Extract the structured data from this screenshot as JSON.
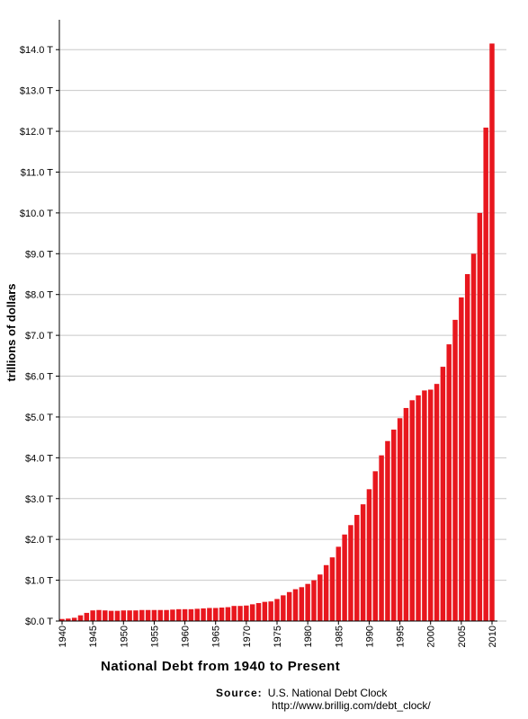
{
  "chart_data": {
    "type": "bar",
    "title": "National Debt from 1940 to Present",
    "ylabel": "trillions of dollars",
    "xlabel": "",
    "ylim": [
      0,
      14.6
    ],
    "y_ticks": [
      "$0.0 T",
      "$1.0 T",
      "$2.0 T",
      "$3.0 T",
      "$4.0 T",
      "$5.0 T",
      "$6.0 T",
      "$7.0 T",
      "$8.0 T",
      "$9.0 T",
      "$10.0 T",
      "$11.0 T",
      "$12.0 T",
      "$13.0 T",
      "$14.0 T"
    ],
    "x_ticks": [
      "1940",
      "1945",
      "1950",
      "1955",
      "1960",
      "1965",
      "1970",
      "1975",
      "1980",
      "1985",
      "1990",
      "1995",
      "2000",
      "2005",
      "2010"
    ],
    "grid": true,
    "bar_color": "#e8171e",
    "categories": [
      "1940",
      "1941",
      "1942",
      "1943",
      "1944",
      "1945",
      "1946",
      "1947",
      "1948",
      "1949",
      "1950",
      "1951",
      "1952",
      "1953",
      "1954",
      "1955",
      "1956",
      "1957",
      "1958",
      "1959",
      "1960",
      "1961",
      "1962",
      "1963",
      "1964",
      "1965",
      "1966",
      "1967",
      "1968",
      "1969",
      "1970",
      "1971",
      "1972",
      "1973",
      "1974",
      "1975",
      "1976",
      "1977",
      "1978",
      "1979",
      "1980",
      "1981",
      "1982",
      "1983",
      "1984",
      "1985",
      "1986",
      "1987",
      "1988",
      "1989",
      "1990",
      "1991",
      "1992",
      "1993",
      "1994",
      "1995",
      "1996",
      "1997",
      "1998",
      "1999",
      "2000",
      "2001",
      "2002",
      "2003",
      "2004",
      "2005",
      "2006",
      "2007",
      "2008",
      "2009",
      "2010"
    ],
    "values": [
      0.05,
      0.06,
      0.08,
      0.14,
      0.2,
      0.26,
      0.27,
      0.26,
      0.25,
      0.25,
      0.26,
      0.26,
      0.26,
      0.27,
      0.27,
      0.27,
      0.27,
      0.27,
      0.28,
      0.29,
      0.29,
      0.29,
      0.3,
      0.31,
      0.32,
      0.32,
      0.33,
      0.34,
      0.37,
      0.37,
      0.38,
      0.41,
      0.44,
      0.47,
      0.48,
      0.54,
      0.63,
      0.71,
      0.78,
      0.83,
      0.91,
      1.0,
      1.14,
      1.37,
      1.56,
      1.82,
      2.12,
      2.35,
      2.6,
      2.86,
      3.23,
      3.67,
      4.06,
      4.41,
      4.69,
      4.97,
      5.22,
      5.41,
      5.53,
      5.65,
      5.67,
      5.81,
      6.23,
      6.78,
      7.38,
      7.93,
      8.5,
      9.0,
      10.0,
      12.09,
      14.15
    ]
  },
  "source": {
    "label": "Source:",
    "name": "U.S. National Debt Clock",
    "url": "http://www.brillig.com/debt_clock/"
  }
}
